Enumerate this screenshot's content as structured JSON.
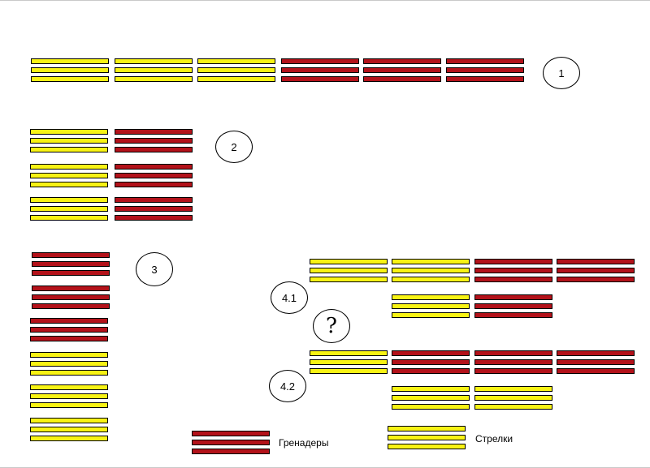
{
  "colors": {
    "grenadiers": "#b3121a",
    "riflemen": "#f8f314",
    "outline": "#000000"
  },
  "labels": {
    "l1": "1",
    "l2": "2",
    "l3": "3",
    "l41": "4.1",
    "l42": "4.2",
    "question": "?"
  },
  "legend": {
    "grenadiers_label": "Гренадеры",
    "riflemen_label": "Стрелки"
  },
  "formations": {
    "f1": {
      "name": "1",
      "units": [
        "riflemen",
        "riflemen",
        "riflemen",
        "grenadiers",
        "grenadiers",
        "grenadiers"
      ]
    },
    "f2": {
      "name": "2",
      "rows": [
        [
          "riflemen",
          "grenadiers"
        ],
        [
          "riflemen",
          "grenadiers"
        ],
        [
          "riflemen",
          "grenadiers"
        ]
      ]
    },
    "f3": {
      "name": "3",
      "units": [
        "grenadiers",
        "grenadiers",
        "grenadiers",
        "riflemen",
        "riflemen",
        "riflemen"
      ]
    },
    "f41": {
      "name": "4.1",
      "front": [
        "riflemen",
        "riflemen",
        "grenadiers",
        "grenadiers"
      ],
      "rear": [
        "riflemen",
        "grenadiers"
      ]
    },
    "f42": {
      "name": "4.2",
      "front": [
        "riflemen",
        "grenadiers",
        "grenadiers",
        "grenadiers"
      ],
      "rear": [
        "riflemen",
        "riflemen"
      ]
    }
  }
}
